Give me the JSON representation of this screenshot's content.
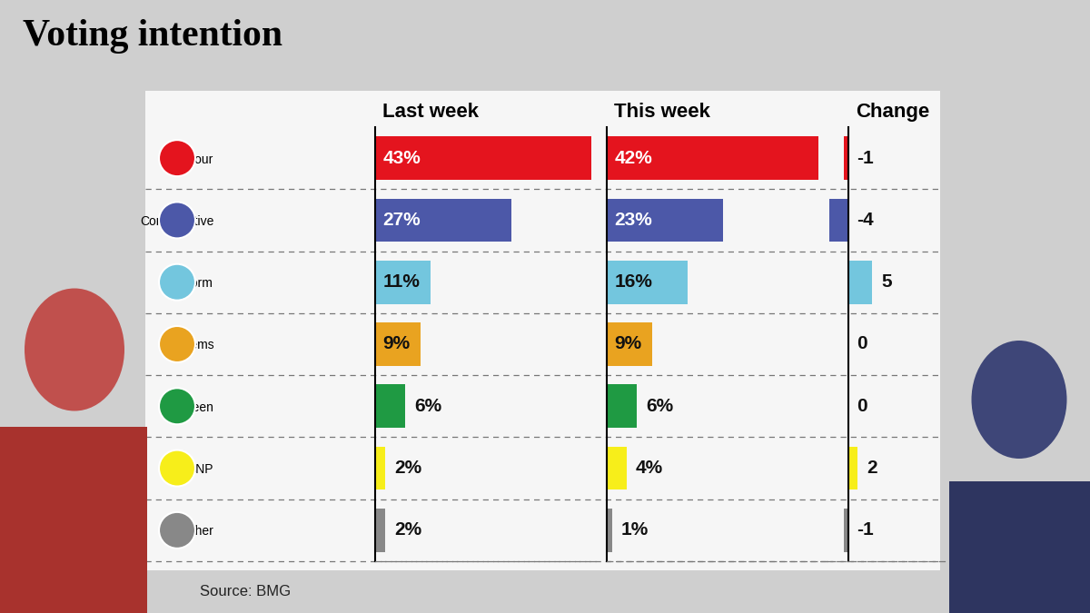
{
  "title": "Voting intention",
  "annotations": [
    "Source: BMG"
  ],
  "chart_data": [
    {
      "type": "bar",
      "orientation": "horizontal",
      "title": "Last week",
      "categories": [
        "Labour",
        "Conservative",
        "Reform",
        "Lib Dems",
        "Green",
        "SNP",
        "Other"
      ],
      "values": [
        43,
        27,
        11,
        9,
        6,
        2,
        2
      ],
      "value_labels": [
        "43%",
        "27%",
        "11%",
        "9%",
        "6%",
        "2%",
        "2%"
      ],
      "colors": [
        "#e4141e",
        "#4c58a8",
        "#73c6de",
        "#e9a320",
        "#1f9a43",
        "#f7ee1a",
        "#888888"
      ],
      "xlim": [
        0,
        44
      ],
      "data_labels": true,
      "tick_labels": "y",
      "grid": false
    },
    {
      "type": "bar",
      "orientation": "horizontal",
      "title": "This week",
      "categories": [
        "Labour",
        "Conservative",
        "Reform",
        "Lib Dems",
        "Green",
        "SNP",
        "Other"
      ],
      "values": [
        42,
        23,
        16,
        9,
        6,
        4,
        1
      ],
      "value_labels": [
        "42%",
        "23%",
        "16%",
        "9%",
        "6%",
        "4%",
        "1%"
      ],
      "colors": [
        "#e4141e",
        "#4c58a8",
        "#73c6de",
        "#e9a320",
        "#1f9a43",
        "#f7ee1a",
        "#888888"
      ],
      "xlim": [
        0,
        44
      ],
      "data_labels": true,
      "tick_labels": false,
      "grid": false
    },
    {
      "type": "bar",
      "orientation": "horizontal",
      "title": "Change",
      "categories": [
        "Labour",
        "Conservative",
        "Reform",
        "Lib Dems",
        "Green",
        "SNP",
        "Other"
      ],
      "values": [
        -1,
        -4,
        5,
        0,
        0,
        2,
        -1
      ],
      "colors": [
        "#e4141e",
        "#4c58a8",
        "#73c6de",
        "#e9a320",
        "#1f9a43",
        "#f7ee1a",
        "#888888"
      ],
      "xlim": [
        -4.5,
        20
      ],
      "data_labels": true,
      "tick_labels": false,
      "grid": false
    }
  ]
}
